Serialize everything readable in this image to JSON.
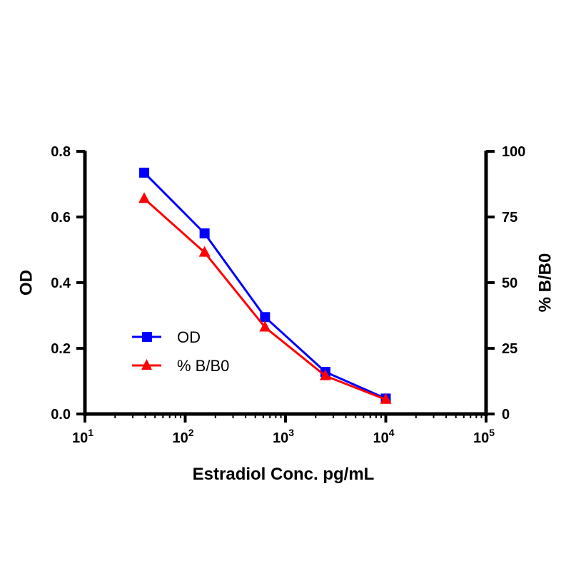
{
  "chart_data": {
    "type": "line",
    "xlabel": "Estradiol Conc. pg/mL",
    "ylabel": "OD",
    "y2label": "% B/B0",
    "xscale": "log10",
    "xlim": [
      10,
      100000
    ],
    "ylim": [
      0,
      0.8
    ],
    "y2lim": [
      0,
      100
    ],
    "x_ticks": [
      {
        "base": "10",
        "exp": "1"
      },
      {
        "base": "10",
        "exp": "2"
      },
      {
        "base": "10",
        "exp": "3"
      },
      {
        "base": "10",
        "exp": "4"
      },
      {
        "base": "10",
        "exp": "5"
      }
    ],
    "y_ticks": [
      "0.0",
      "0.2",
      "0.4",
      "0.6",
      "0.8"
    ],
    "y2_ticks": [
      "0",
      "25",
      "50",
      "75",
      "100"
    ],
    "legend_position": "lower-left inside plot",
    "grid": false,
    "series": [
      {
        "name": "OD",
        "axis": "left",
        "color": "#0000ff",
        "marker": "square",
        "x": [
          39,
          156,
          625,
          2500,
          10000
        ],
        "y": [
          0.735,
          0.55,
          0.295,
          0.128,
          0.047
        ]
      },
      {
        "name": "% B/B0",
        "axis": "right",
        "color": "#ff0000",
        "marker": "triangle",
        "x": [
          39,
          156,
          625,
          2500,
          10000
        ],
        "y": [
          82,
          61.5,
          33,
          14.5,
          5.5
        ]
      }
    ]
  }
}
